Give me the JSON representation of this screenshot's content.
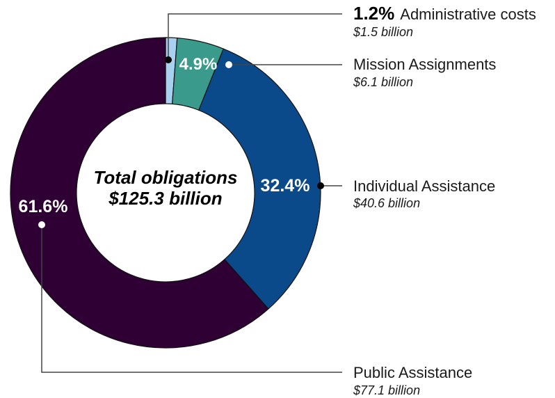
{
  "chart_data": {
    "type": "pie",
    "variant": "donut",
    "center_label": [
      "Total obligations",
      "$125.3 billion"
    ],
    "slices": [
      {
        "name": "Administrative costs",
        "percent_label": "1.2%",
        "value": 1.2,
        "amount": "$1.5 billion",
        "color": "#a8d0f0"
      },
      {
        "name": "Mission Assignments",
        "percent_label": "4.9%",
        "value": 4.9,
        "amount": "$6.1 billion",
        "color": "#3a9a8c"
      },
      {
        "name": "Individual Assistance",
        "percent_label": "32.4%",
        "value": 32.4,
        "amount": "$40.6 billion",
        "color": "#0b4a8a"
      },
      {
        "name": "Public Assistance",
        "percent_label": "61.6%",
        "value": 61.6,
        "amount": "$77.1 billion",
        "color": "#2e0033"
      }
    ]
  }
}
